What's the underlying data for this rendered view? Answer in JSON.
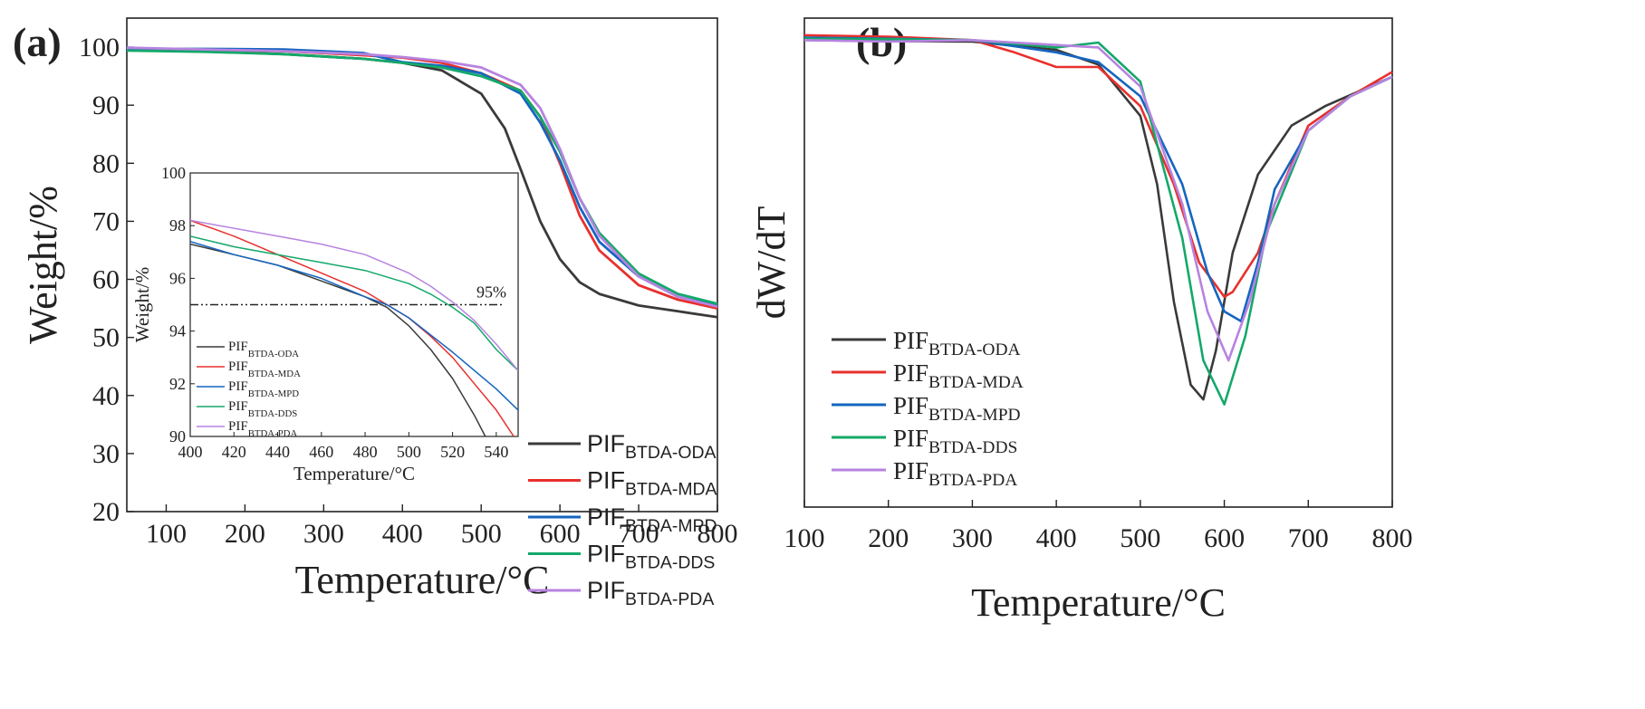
{
  "colors": {
    "ODA": "#3a3a3a",
    "MDA": "#e8302d",
    "MPD": "#1565c0",
    "DDS": "#14a86a",
    "PDA": "#b783e0",
    "axis": "#222222"
  },
  "chart_data": [
    {
      "panel": "(a)",
      "type": "line",
      "xlabel": "Temperature/°C",
      "ylabel": "Weight/%",
      "xlim": [
        50,
        800
      ],
      "ylim": [
        20,
        105
      ],
      "x_ticks": [
        100,
        200,
        300,
        400,
        500,
        600,
        700,
        800
      ],
      "y_ticks": [
        20,
        30,
        40,
        50,
        60,
        70,
        80,
        90,
        100
      ],
      "legend_position": "right",
      "series": [
        {
          "key": "ODA",
          "name_main": "PIF",
          "name_sub": "BTDA-ODA",
          "x": [
            50,
            150,
            250,
            350,
            400,
            450,
            500,
            530,
            550,
            575,
            600,
            625,
            650,
            700,
            750,
            800
          ],
          "y": [
            99.5,
            99.3,
            98.8,
            98.0,
            97.3,
            96.0,
            92.0,
            86.0,
            79.0,
            70.0,
            63.5,
            59.5,
            57.5,
            55.5,
            54.5,
            53.5
          ]
        },
        {
          "key": "MDA",
          "name_main": "PIF",
          "name_sub": "BTDA-MDA",
          "x": [
            50,
            150,
            250,
            350,
            400,
            450,
            500,
            550,
            575,
            600,
            625,
            650,
            700,
            750,
            800
          ],
          "y": [
            99.6,
            99.5,
            99.3,
            98.6,
            98.2,
            97.3,
            95.5,
            92.5,
            88.0,
            80.0,
            71.0,
            65.0,
            59.0,
            56.5,
            55.0
          ]
        },
        {
          "key": "MPD",
          "name_main": "PIF",
          "name_sub": "BTDA-MPD",
          "x": [
            50,
            150,
            250,
            350,
            400,
            450,
            500,
            550,
            575,
            600,
            625,
            650,
            700,
            750,
            800
          ],
          "y": [
            99.7,
            99.7,
            99.6,
            99.0,
            97.4,
            96.8,
            95.5,
            92.0,
            87.0,
            80.5,
            72.5,
            66.5,
            60.5,
            57.0,
            55.5
          ]
        },
        {
          "key": "DDS",
          "name_main": "PIF",
          "name_sub": "BTDA-DDS",
          "x": [
            50,
            150,
            250,
            350,
            400,
            450,
            500,
            550,
            575,
            600,
            625,
            650,
            700,
            750,
            800
          ],
          "y": [
            99.4,
            99.2,
            98.8,
            98.0,
            97.3,
            96.5,
            95.0,
            92.5,
            88.0,
            82.0,
            74.0,
            68.0,
            61.0,
            57.5,
            55.8
          ]
        },
        {
          "key": "PDA",
          "name_main": "PIF",
          "name_sub": "BTDA-PDA",
          "x": [
            50,
            150,
            250,
            350,
            400,
            450,
            500,
            550,
            575,
            600,
            625,
            650,
            700,
            750,
            800
          ],
          "y": [
            99.9,
            99.6,
            99.3,
            98.8,
            98.3,
            97.6,
            96.5,
            93.5,
            89.5,
            82.5,
            74.0,
            67.5,
            60.5,
            57.0,
            55.3
          ]
        }
      ]
    },
    {
      "panel": "(a) inset",
      "type": "line",
      "xlabel": "Temperature/°C",
      "ylabel": "Weight/%",
      "xlim": [
        400,
        550
      ],
      "ylim": [
        90,
        100
      ],
      "x_ticks": [
        400,
        420,
        440,
        460,
        480,
        500,
        520,
        540
      ],
      "y_ticks": [
        90,
        92,
        94,
        96,
        98,
        100
      ],
      "reference_line": {
        "y": 95,
        "label": "95%"
      },
      "legend_position": "bottom-left",
      "series": [
        {
          "key": "ODA",
          "name_main": "PIF",
          "name_sub": "BTDA-ODA",
          "x": [
            400,
            420,
            440,
            460,
            480,
            490,
            500,
            510,
            520,
            530,
            535
          ],
          "y": [
            97.3,
            96.9,
            96.5,
            95.9,
            95.3,
            94.9,
            94.2,
            93.3,
            92.2,
            90.8,
            90.0
          ]
        },
        {
          "key": "MDA",
          "name_main": "PIF",
          "name_sub": "BTDA-MDA",
          "x": [
            400,
            420,
            440,
            460,
            480,
            500,
            510,
            520,
            530,
            540,
            548
          ],
          "y": [
            98.2,
            97.6,
            96.9,
            96.2,
            95.5,
            94.5,
            93.8,
            93.0,
            92.0,
            91.0,
            90.0
          ]
        },
        {
          "key": "MPD",
          "name_main": "PIF",
          "name_sub": "BTDA-MPD",
          "x": [
            400,
            420,
            440,
            460,
            480,
            490,
            500,
            520,
            540,
            550
          ],
          "y": [
            97.4,
            96.9,
            96.5,
            96.0,
            95.3,
            95.0,
            94.5,
            93.2,
            91.8,
            91.0
          ]
        },
        {
          "key": "DDS",
          "name_main": "PIF",
          "name_sub": "BTDA-DDS",
          "x": [
            400,
            420,
            440,
            460,
            480,
            500,
            510,
            520,
            530,
            540,
            550
          ],
          "y": [
            97.6,
            97.2,
            96.9,
            96.6,
            96.3,
            95.8,
            95.4,
            94.9,
            94.3,
            93.3,
            92.5
          ]
        },
        {
          "key": "PDA",
          "name_main": "PIF",
          "name_sub": "BTDA-PDA",
          "x": [
            400,
            420,
            440,
            460,
            480,
            500,
            510,
            520,
            530,
            540,
            550
          ],
          "y": [
            98.2,
            97.9,
            97.6,
            97.3,
            96.9,
            96.2,
            95.7,
            95.1,
            94.4,
            93.5,
            92.5
          ]
        }
      ]
    },
    {
      "panel": "(b)",
      "type": "line",
      "xlabel": "Temperature/°C",
      "ylabel": "dW/dT",
      "xlim": [
        100,
        800
      ],
      "ylim": [
        0,
        1
      ],
      "x_ticks": [
        100,
        200,
        300,
        400,
        500,
        600,
        700,
        800
      ],
      "legend_position": "bottom-left",
      "series": [
        {
          "key": "ODA",
          "name_main": "PIF",
          "name_sub": "BTDA-ODA",
          "x": [
            100,
            200,
            300,
            400,
            450,
            500,
            520,
            540,
            560,
            575,
            590,
            610,
            640,
            680,
            720,
            760,
            800
          ],
          "y": [
            0.955,
            0.953,
            0.952,
            0.935,
            0.905,
            0.8,
            0.66,
            0.42,
            0.25,
            0.22,
            0.32,
            0.52,
            0.68,
            0.78,
            0.82,
            0.85,
            0.88
          ]
        },
        {
          "key": "MDA",
          "name_main": "PIF",
          "name_sub": "BTDA-MDA",
          "x": [
            100,
            200,
            300,
            350,
            400,
            450,
            500,
            540,
            570,
            600,
            610,
            640,
            660,
            700,
            750,
            800
          ],
          "y": [
            0.965,
            0.962,
            0.955,
            0.93,
            0.9,
            0.9,
            0.82,
            0.66,
            0.5,
            0.43,
            0.44,
            0.52,
            0.62,
            0.78,
            0.84,
            0.89
          ]
        },
        {
          "key": "MPD",
          "name_main": "PIF",
          "name_sub": "BTDA-MPD",
          "x": [
            100,
            200,
            300,
            400,
            450,
            500,
            550,
            580,
            600,
            620,
            640,
            660,
            700,
            750,
            800
          ],
          "y": [
            0.96,
            0.958,
            0.955,
            0.93,
            0.91,
            0.84,
            0.66,
            0.48,
            0.4,
            0.38,
            0.5,
            0.65,
            0.77,
            0.84,
            0.88
          ]
        },
        {
          "key": "DDS",
          "name_main": "PIF",
          "name_sub": "BTDA-DDS",
          "x": [
            100,
            200,
            300,
            400,
            450,
            500,
            550,
            575,
            600,
            625,
            650,
            700,
            750,
            800
          ],
          "y": [
            0.958,
            0.957,
            0.955,
            0.94,
            0.95,
            0.87,
            0.55,
            0.3,
            0.21,
            0.35,
            0.56,
            0.77,
            0.84,
            0.88
          ]
        },
        {
          "key": "PDA",
          "name_main": "PIF",
          "name_sub": "BTDA-PDA",
          "x": [
            100,
            200,
            300,
            400,
            450,
            500,
            550,
            580,
            605,
            630,
            660,
            700,
            750,
            800
          ],
          "y": [
            0.955,
            0.952,
            0.955,
            0.945,
            0.94,
            0.86,
            0.62,
            0.4,
            0.3,
            0.42,
            0.62,
            0.77,
            0.84,
            0.88
          ]
        }
      ]
    }
  ]
}
